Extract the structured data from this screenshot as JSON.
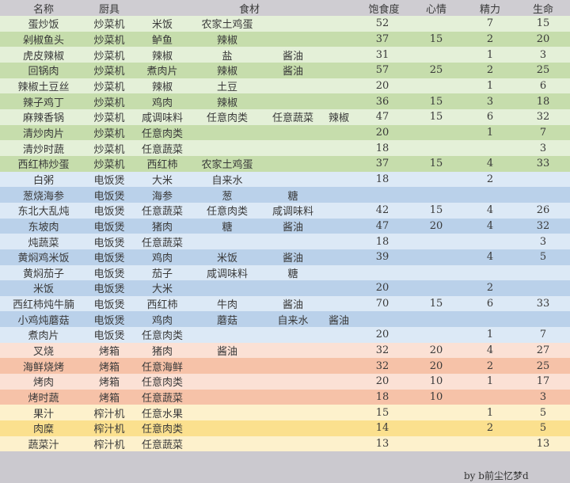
{
  "header": [
    "名称",
    "厨具",
    "食材",
    "饱食度",
    "心情",
    "精力",
    "生命"
  ],
  "palette": {
    "green": [
      "#e4f0d8",
      "#c6ddac"
    ],
    "blue": [
      "#dce9f6",
      "#bad1ea"
    ],
    "orange": [
      "#fbe1d5",
      "#f6c2a8"
    ],
    "yellow": [
      "#fdf1cc",
      "#fbe08e"
    ],
    "header": "#cfcdd2"
  },
  "rows": [
    {
      "group": "green",
      "name": "蛋炒饭",
      "tool": "炒菜机",
      "ing": [
        "米饭",
        "农家土鸡蛋",
        "",
        ""
      ],
      "satiety": "52",
      "mood": "",
      "energy": "7",
      "life": "15"
    },
    {
      "group": "green",
      "name": "剁椒鱼头",
      "tool": "炒菜机",
      "ing": [
        "鲈鱼",
        "辣椒",
        "",
        ""
      ],
      "satiety": "37",
      "mood": "15",
      "energy": "2",
      "life": "20"
    },
    {
      "group": "green",
      "name": "虎皮辣椒",
      "tool": "炒菜机",
      "ing": [
        "辣椒",
        "盐",
        "酱油",
        ""
      ],
      "satiety": "31",
      "mood": "",
      "energy": "1",
      "life": "3"
    },
    {
      "group": "green",
      "name": "回锅肉",
      "tool": "炒菜机",
      "ing": [
        "煮肉片",
        "辣椒",
        "酱油",
        ""
      ],
      "satiety": "57",
      "mood": "25",
      "energy": "2",
      "life": "25"
    },
    {
      "group": "green",
      "name": "辣椒土豆丝",
      "tool": "炒菜机",
      "ing": [
        "辣椒",
        "土豆",
        "",
        ""
      ],
      "satiety": "20",
      "mood": "",
      "energy": "1",
      "life": "6"
    },
    {
      "group": "green",
      "name": "辣子鸡丁",
      "tool": "炒菜机",
      "ing": [
        "鸡肉",
        "辣椒",
        "",
        ""
      ],
      "satiety": "36",
      "mood": "15",
      "energy": "3",
      "life": "18"
    },
    {
      "group": "green",
      "name": "麻辣香锅",
      "tool": "炒菜机",
      "ing": [
        "咸调味料",
        "任意肉类",
        "任意蔬菜",
        "辣椒"
      ],
      "satiety": "47",
      "mood": "15",
      "energy": "6",
      "life": "32"
    },
    {
      "group": "green",
      "name": "清炒肉片",
      "tool": "炒菜机",
      "ing": [
        "任意肉类",
        "",
        "",
        ""
      ],
      "satiety": "20",
      "mood": "",
      "energy": "1",
      "life": "7"
    },
    {
      "group": "green",
      "name": "清炒时蔬",
      "tool": "炒菜机",
      "ing": [
        "任意蔬菜",
        "",
        "",
        ""
      ],
      "satiety": "18",
      "mood": "",
      "energy": "",
      "life": "3"
    },
    {
      "group": "green",
      "name": "西红柿炒蛋",
      "tool": "炒菜机",
      "ing": [
        "西红柿",
        "农家土鸡蛋",
        "",
        ""
      ],
      "satiety": "37",
      "mood": "15",
      "energy": "4",
      "life": "33"
    },
    {
      "group": "blue",
      "name": "白粥",
      "tool": "电饭煲",
      "ing": [
        "大米",
        "自来水",
        "",
        ""
      ],
      "satiety": "18",
      "mood": "",
      "energy": "2",
      "life": ""
    },
    {
      "group": "blue",
      "name": "葱烧海参",
      "tool": "电饭煲",
      "ing": [
        "海参",
        "葱",
        "糖",
        ""
      ],
      "satiety": "",
      "mood": "",
      "energy": "",
      "life": ""
    },
    {
      "group": "blue",
      "name": "东北大乱炖",
      "tool": "电饭煲",
      "ing": [
        "任意蔬菜",
        "任意肉类",
        "咸调味料",
        ""
      ],
      "satiety": "42",
      "mood": "15",
      "energy": "4",
      "life": "26"
    },
    {
      "group": "blue",
      "name": "东坡肉",
      "tool": "电饭煲",
      "ing": [
        "猪肉",
        "糖",
        "酱油",
        ""
      ],
      "satiety": "47",
      "mood": "20",
      "energy": "4",
      "life": "32"
    },
    {
      "group": "blue",
      "name": "炖蔬菜",
      "tool": "电饭煲",
      "ing": [
        "任意蔬菜",
        "",
        "",
        ""
      ],
      "satiety": "18",
      "mood": "",
      "energy": "",
      "life": "3"
    },
    {
      "group": "blue",
      "name": "黄焖鸡米饭",
      "tool": "电饭煲",
      "ing": [
        "鸡肉",
        "米饭",
        "酱油",
        ""
      ],
      "satiety": "39",
      "mood": "",
      "energy": "4",
      "life": "5"
    },
    {
      "group": "blue",
      "name": "黄焖茄子",
      "tool": "电饭煲",
      "ing": [
        "茄子",
        "咸调味料",
        "糖",
        ""
      ],
      "satiety": "",
      "mood": "",
      "energy": "",
      "life": ""
    },
    {
      "group": "blue",
      "name": "米饭",
      "tool": "电饭煲",
      "ing": [
        "大米",
        "",
        "",
        ""
      ],
      "satiety": "20",
      "mood": "",
      "energy": "2",
      "life": ""
    },
    {
      "group": "blue",
      "name": "西红柿炖牛腩",
      "tool": "电饭煲",
      "ing": [
        "西红柿",
        "牛肉",
        "酱油",
        ""
      ],
      "satiety": "70",
      "mood": "15",
      "energy": "6",
      "life": "33"
    },
    {
      "group": "blue",
      "name": "小鸡炖蘑菇",
      "tool": "电饭煲",
      "ing": [
        "鸡肉",
        "蘑菇",
        "自来水",
        "酱油"
      ],
      "satiety": "",
      "mood": "",
      "energy": "",
      "life": ""
    },
    {
      "group": "blue",
      "name": "煮肉片",
      "tool": "电饭煲",
      "ing": [
        "任意肉类",
        "",
        "",
        ""
      ],
      "satiety": "20",
      "mood": "",
      "energy": "1",
      "life": "7"
    },
    {
      "group": "orange",
      "name": "叉烧",
      "tool": "烤箱",
      "ing": [
        "猪肉",
        "酱油",
        "",
        ""
      ],
      "satiety": "32",
      "mood": "20",
      "energy": "4",
      "life": "27"
    },
    {
      "group": "orange",
      "name": "海鲜烧烤",
      "tool": "烤箱",
      "ing": [
        "任意海鲜",
        "",
        "",
        ""
      ],
      "satiety": "32",
      "mood": "20",
      "energy": "2",
      "life": "25"
    },
    {
      "group": "orange",
      "name": "烤肉",
      "tool": "烤箱",
      "ing": [
        "任意肉类",
        "",
        "",
        ""
      ],
      "satiety": "20",
      "mood": "10",
      "energy": "1",
      "life": "17"
    },
    {
      "group": "orange",
      "name": "烤时蔬",
      "tool": "烤箱",
      "ing": [
        "任意蔬菜",
        "",
        "",
        ""
      ],
      "satiety": "18",
      "mood": "10",
      "energy": "",
      "life": "3"
    },
    {
      "group": "yellow",
      "name": "果汁",
      "tool": "榨汁机",
      "ing": [
        "任意水果",
        "",
        "",
        ""
      ],
      "satiety": "15",
      "mood": "",
      "energy": "1",
      "life": "5"
    },
    {
      "group": "yellow",
      "name": "肉糜",
      "tool": "榨汁机",
      "ing": [
        "任意肉类",
        "",
        "",
        ""
      ],
      "satiety": "14",
      "mood": "",
      "energy": "2",
      "life": "5"
    },
    {
      "group": "yellow",
      "name": "蔬菜汁",
      "tool": "榨汁机",
      "ing": [
        "任意蔬菜",
        "",
        "",
        ""
      ],
      "satiety": "13",
      "mood": "",
      "energy": "",
      "life": "13"
    }
  ],
  "footer": {
    "credit": "by b前尘忆梦d"
  }
}
